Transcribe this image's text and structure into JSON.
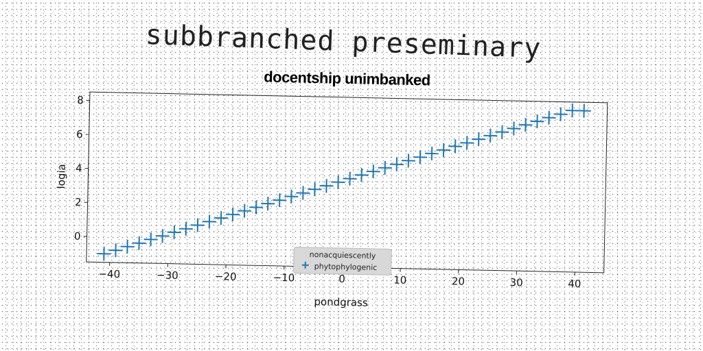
{
  "title": "subbranched preseminary",
  "chart_data": {
    "type": "scatter",
    "title": "docentship unimbanked",
    "xlabel": "pondgrass",
    "ylabel": "logia",
    "xlim": [
      -44,
      45
    ],
    "ylim": [
      -1.5,
      8.5
    ],
    "xticks": [
      -40,
      -30,
      -20,
      -10,
      0,
      10,
      20,
      30,
      40
    ],
    "yticks": [
      0,
      2,
      4,
      6,
      8
    ],
    "grid": false,
    "legend": {
      "title": "nonacquiescently",
      "placement": "lower center"
    },
    "series": [
      {
        "name": "phytophylogenic",
        "marker": "+",
        "color": "#1f77b4",
        "x": [
          -41,
          -39,
          -37,
          -35,
          -33,
          -31,
          -29,
          -27,
          -25,
          -23,
          -21,
          -19,
          -17,
          -15,
          -13,
          -11,
          -9,
          -7,
          -5,
          -3,
          -1,
          1,
          3,
          5,
          7,
          9,
          11,
          13,
          15,
          17,
          19,
          21,
          23,
          25,
          27,
          29,
          31,
          33,
          35,
          37,
          39,
          41
        ],
        "y": [
          -1.0,
          -0.78,
          -0.55,
          -0.33,
          -0.1,
          0.12,
          0.35,
          0.57,
          0.8,
          1.02,
          1.25,
          1.47,
          1.7,
          1.92,
          2.15,
          2.37,
          2.6,
          2.82,
          3.05,
          3.27,
          3.5,
          3.72,
          3.95,
          4.17,
          4.4,
          4.62,
          4.85,
          5.07,
          5.3,
          5.52,
          5.75,
          5.97,
          6.2,
          6.42,
          6.65,
          6.87,
          7.1,
          7.32,
          7.55,
          7.77,
          8.0,
          8.0
        ]
      }
    ]
  }
}
